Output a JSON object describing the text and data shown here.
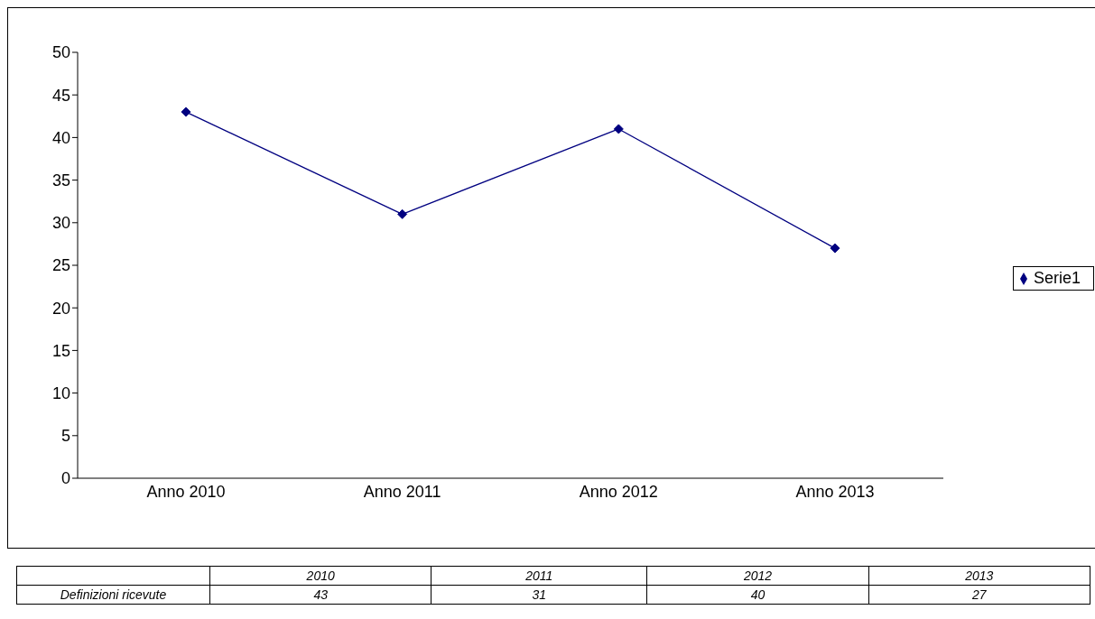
{
  "chart_data": {
    "type": "line",
    "categories": [
      "Anno 2010",
      "Anno 2011",
      "Anno 2012",
      "Anno 2013"
    ],
    "series": [
      {
        "name": "Serie1",
        "color": "#000080",
        "values": [
          43,
          31,
          41,
          27
        ]
      }
    ],
    "ylim": [
      0,
      50
    ],
    "yticks": [
      0,
      5,
      10,
      15,
      20,
      25,
      30,
      35,
      40,
      45,
      50
    ],
    "grid": false,
    "legend": "right",
    "marker": "diamond",
    "annotations": [
      "2010",
      "2011",
      "2012",
      "2013",
      "Definizioni ricevute",
      "43",
      "31",
      "40",
      "27"
    ]
  }
}
